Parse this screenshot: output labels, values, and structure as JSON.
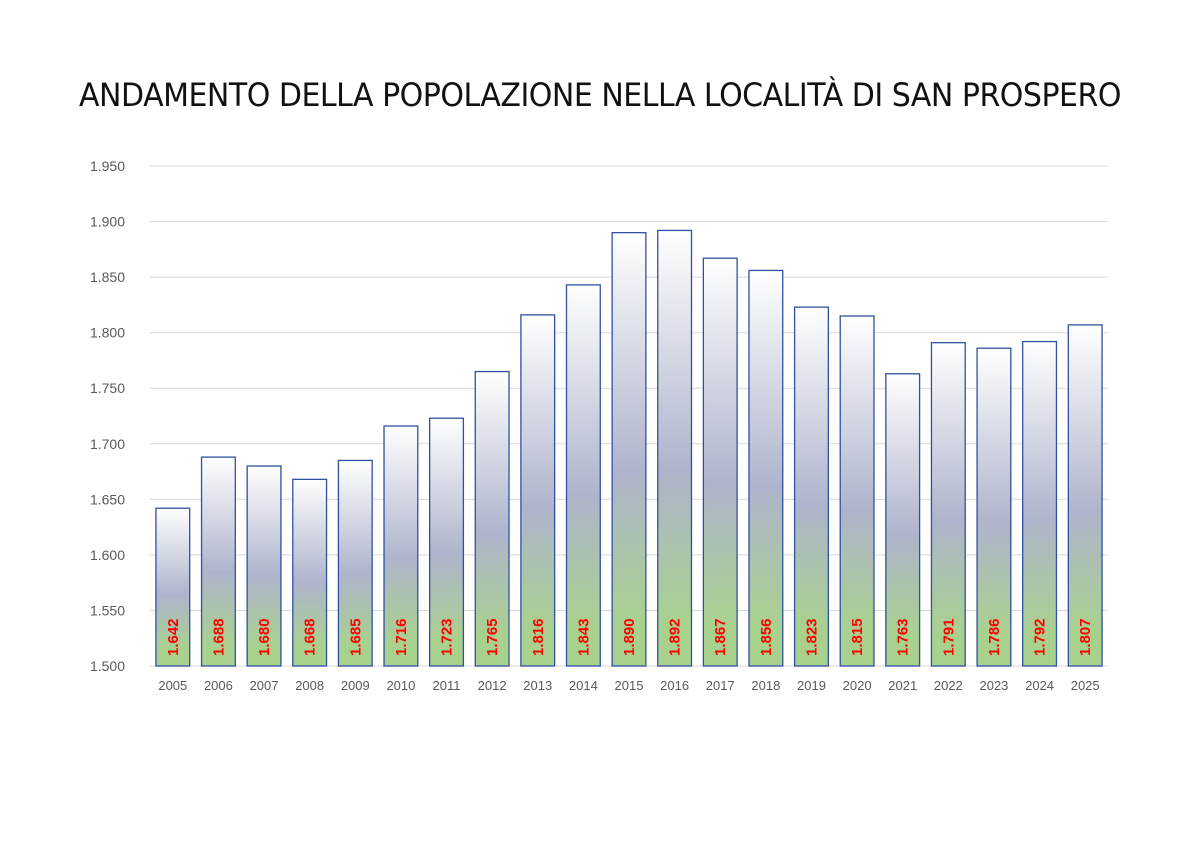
{
  "chart_data": {
    "type": "bar",
    "title": "ANDAMENTO DELLA POPOLAZIONE NELLA LOCALITÀ DI SAN PROSPERO",
    "categories": [
      "2005",
      "2006",
      "2007",
      "2008",
      "2009",
      "2010",
      "2011",
      "2012",
      "2013",
      "2014",
      "2015",
      "2016",
      "2017",
      "2018",
      "2019",
      "2020",
      "2021",
      "2022",
      "2023",
      "2024",
      "2025"
    ],
    "values": [
      1642,
      1688,
      1680,
      1668,
      1685,
      1716,
      1723,
      1765,
      1816,
      1843,
      1890,
      1892,
      1867,
      1856,
      1823,
      1815,
      1763,
      1791,
      1786,
      1792,
      1807
    ],
    "value_labels": [
      "1.642",
      "1.688",
      "1.680",
      "1.668",
      "1.685",
      "1.716",
      "1.723",
      "1.765",
      "1.816",
      "1.843",
      "1.890",
      "1.892",
      "1.867",
      "1.856",
      "1.823",
      "1.815",
      "1.763",
      "1.791",
      "1.786",
      "1.792",
      "1.807"
    ],
    "ylim": [
      1500,
      1950
    ],
    "yticks": [
      1500,
      1550,
      1600,
      1650,
      1700,
      1750,
      1800,
      1850,
      1900,
      1950
    ],
    "ytick_labels": [
      "1.500",
      "1.550",
      "1.600",
      "1.650",
      "1.700",
      "1.750",
      "1.800",
      "1.850",
      "1.900",
      "1.950"
    ],
    "xlabel": "",
    "ylabel": "",
    "grid": true,
    "legend": "none",
    "colors": {
      "bar_border": "#2f52a0",
      "bar_gradient_top": "#ffffff",
      "bar_gradient_mid": "#aeb4cc",
      "bar_gradient_bottom": "#a9d18e",
      "data_label": "#ff0000",
      "gridline": "#d9d9d9",
      "tick_text": "#595959"
    }
  }
}
